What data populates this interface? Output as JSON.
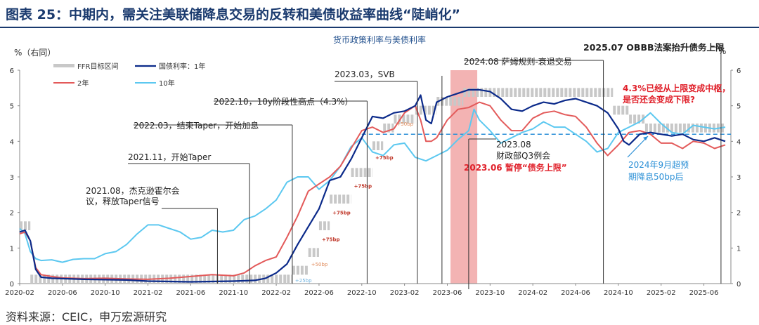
{
  "header": {
    "title": "图表 25：中期内，需关注美联储降息交易的反转和美债收益率曲线“陡峭化”"
  },
  "footer": {
    "source": "资料来源：CEIC，申万宏源研究"
  },
  "chart_data": {
    "type": "line",
    "title": "货币政策利率与美债利率",
    "unit_left": "%（右同）",
    "unit_right": "%",
    "ylim": [
      0,
      6
    ],
    "yticks": [
      "0",
      "1",
      "2",
      "3",
      "4",
      "5",
      "6"
    ],
    "x_tick_labels": [
      "2020-02",
      "2020-06",
      "2020-10",
      "2021-02",
      "2021-06",
      "2021-10",
      "2022-02",
      "2022-06",
      "2022-10",
      "2023-02",
      "2023-06",
      "2023-10",
      "2024-02",
      "2024-06",
      "2024-10",
      "2025-02",
      "2025-06"
    ],
    "x_month_range": [
      0,
      66
    ],
    "legend": {
      "ffr": "FFR目标区间",
      "y1": "国债利率：1年",
      "y2": "2年",
      "y10": "10年"
    },
    "colors": {
      "ffr": "#c8c8c8",
      "y1": "#0b2a8a",
      "y2": "#e35a5a",
      "y10": "#5cc8f0",
      "highlight": "#ef9a9a",
      "dashed": "#2b8fd8",
      "red_text": "#e0202a"
    },
    "ffr_range": [
      {
        "m": 0,
        "lo": 1.5,
        "hi": 1.75
      },
      {
        "m": 1,
        "lo": 0,
        "hi": 0.25
      },
      {
        "m": 25,
        "lo": 0,
        "hi": 0.25
      },
      {
        "m": 25.5,
        "lo": 0.25,
        "hi": 0.5
      },
      {
        "m": 27,
        "lo": 0.75,
        "hi": 1.0
      },
      {
        "m": 28,
        "lo": 1.5,
        "hi": 1.75
      },
      {
        "m": 29,
        "lo": 2.25,
        "hi": 2.5
      },
      {
        "m": 31,
        "lo": 3.0,
        "hi": 3.25
      },
      {
        "m": 33,
        "lo": 3.75,
        "hi": 4.0
      },
      {
        "m": 34,
        "lo": 4.25,
        "hi": 4.5
      },
      {
        "m": 35,
        "lo": 4.5,
        "hi": 4.75
      },
      {
        "m": 37,
        "lo": 4.75,
        "hi": 5.0
      },
      {
        "m": 39,
        "lo": 5.0,
        "hi": 5.25
      },
      {
        "m": 41.5,
        "lo": 5.25,
        "hi": 5.5
      },
      {
        "m": 55.5,
        "lo": 4.75,
        "hi": 5.0
      },
      {
        "m": 57,
        "lo": 4.5,
        "hi": 4.75
      },
      {
        "m": 58.5,
        "lo": 4.25,
        "hi": 4.5
      },
      {
        "m": 66,
        "lo": 4.25,
        "hi": 4.5
      }
    ],
    "series": [
      {
        "name": "国债利率：1年",
        "key": "y1",
        "points": [
          [
            0,
            1.45
          ],
          [
            0.5,
            1.5
          ],
          [
            1,
            1.2
          ],
          [
            1.5,
            0.4
          ],
          [
            2,
            0.18
          ],
          [
            3,
            0.15
          ],
          [
            4,
            0.14
          ],
          [
            6,
            0.12
          ],
          [
            8,
            0.11
          ],
          [
            10,
            0.1
          ],
          [
            12,
            0.07
          ],
          [
            14,
            0.06
          ],
          [
            16,
            0.05
          ],
          [
            18,
            0.06
          ],
          [
            20,
            0.07
          ],
          [
            22,
            0.09
          ],
          [
            23,
            0.15
          ],
          [
            24,
            0.3
          ],
          [
            25,
            0.55
          ],
          [
            26,
            1.1
          ],
          [
            27,
            1.6
          ],
          [
            28,
            2.1
          ],
          [
            29,
            2.9
          ],
          [
            30,
            3.0
          ],
          [
            31,
            3.5
          ],
          [
            32,
            4.1
          ],
          [
            33,
            4.7
          ],
          [
            34,
            4.65
          ],
          [
            35,
            4.8
          ],
          [
            36,
            4.85
          ],
          [
            37,
            5.0
          ],
          [
            37.5,
            5.3
          ],
          [
            38,
            4.6
          ],
          [
            38.5,
            4.5
          ],
          [
            39,
            5.1
          ],
          [
            40,
            5.25
          ],
          [
            41,
            5.35
          ],
          [
            42,
            5.45
          ],
          [
            43,
            5.45
          ],
          [
            44,
            5.4
          ],
          [
            45,
            5.2
          ],
          [
            46,
            4.9
          ],
          [
            47,
            4.85
          ],
          [
            48,
            5.0
          ],
          [
            49,
            5.1
          ],
          [
            50,
            5.05
          ],
          [
            51,
            5.15
          ],
          [
            52,
            5.2
          ],
          [
            53,
            5.1
          ],
          [
            54,
            5.0
          ],
          [
            55,
            4.8
          ],
          [
            56,
            4.35
          ],
          [
            56.5,
            4.0
          ],
          [
            57,
            3.9
          ],
          [
            58,
            4.2
          ],
          [
            59,
            4.25
          ],
          [
            60,
            4.2
          ],
          [
            61,
            4.15
          ],
          [
            62,
            4.2
          ],
          [
            63,
            4.05
          ],
          [
            64,
            4.0
          ],
          [
            65,
            4.1
          ],
          [
            66,
            4.0
          ]
        ]
      },
      {
        "name": "2年",
        "key": "y2",
        "points": [
          [
            0,
            1.4
          ],
          [
            0.5,
            1.45
          ],
          [
            1,
            1.2
          ],
          [
            1.5,
            0.45
          ],
          [
            2,
            0.25
          ],
          [
            3,
            0.2
          ],
          [
            4,
            0.16
          ],
          [
            6,
            0.14
          ],
          [
            8,
            0.15
          ],
          [
            10,
            0.13
          ],
          [
            12,
            0.12
          ],
          [
            14,
            0.15
          ],
          [
            16,
            0.2
          ],
          [
            18,
            0.25
          ],
          [
            20,
            0.22
          ],
          [
            21,
            0.3
          ],
          [
            22,
            0.5
          ],
          [
            23,
            0.65
          ],
          [
            24,
            0.75
          ],
          [
            25,
            1.3
          ],
          [
            26,
            1.9
          ],
          [
            27,
            2.6
          ],
          [
            28,
            2.8
          ],
          [
            29,
            3.0
          ],
          [
            30,
            3.3
          ],
          [
            31,
            3.8
          ],
          [
            32,
            4.3
          ],
          [
            33,
            4.4
          ],
          [
            34,
            4.25
          ],
          [
            35,
            4.35
          ],
          [
            36,
            4.8
          ],
          [
            37,
            5.0
          ],
          [
            37.5,
            4.6
          ],
          [
            38,
            4.0
          ],
          [
            38.5,
            4.0
          ],
          [
            39,
            4.1
          ],
          [
            40,
            4.6
          ],
          [
            41,
            4.9
          ],
          [
            42,
            4.95
          ],
          [
            43,
            5.1
          ],
          [
            44,
            5.0
          ],
          [
            45,
            4.6
          ],
          [
            46,
            4.3
          ],
          [
            47,
            4.3
          ],
          [
            48,
            4.65
          ],
          [
            49,
            4.8
          ],
          [
            50,
            4.85
          ],
          [
            51,
            4.75
          ],
          [
            52,
            4.7
          ],
          [
            53,
            4.4
          ],
          [
            54,
            3.95
          ],
          [
            55,
            3.6
          ],
          [
            56,
            3.9
          ],
          [
            57,
            4.25
          ],
          [
            58,
            4.3
          ],
          [
            59,
            4.2
          ],
          [
            60,
            3.95
          ],
          [
            61,
            3.95
          ],
          [
            62,
            3.8
          ],
          [
            63,
            4.0
          ],
          [
            64,
            3.95
          ],
          [
            65,
            3.8
          ],
          [
            66,
            3.9
          ]
        ]
      },
      {
        "name": "10年",
        "key": "y10",
        "points": [
          [
            0,
            1.55
          ],
          [
            0.5,
            1.4
          ],
          [
            1,
            0.9
          ],
          [
            1.5,
            0.7
          ],
          [
            2,
            0.65
          ],
          [
            3,
            0.67
          ],
          [
            4,
            0.6
          ],
          [
            5,
            0.68
          ],
          [
            6,
            0.7
          ],
          [
            7,
            0.7
          ],
          [
            8,
            0.84
          ],
          [
            9,
            0.9
          ],
          [
            10,
            1.1
          ],
          [
            11,
            1.4
          ],
          [
            12,
            1.65
          ],
          [
            13,
            1.65
          ],
          [
            14,
            1.55
          ],
          [
            15,
            1.45
          ],
          [
            16,
            1.25
          ],
          [
            17,
            1.3
          ],
          [
            18,
            1.5
          ],
          [
            19,
            1.45
          ],
          [
            20,
            1.5
          ],
          [
            21,
            1.8
          ],
          [
            22,
            1.9
          ],
          [
            23,
            2.1
          ],
          [
            24,
            2.35
          ],
          [
            25,
            2.85
          ],
          [
            26,
            3.0
          ],
          [
            27,
            3.0
          ],
          [
            28,
            2.65
          ],
          [
            29,
            2.9
          ],
          [
            30,
            3.3
          ],
          [
            31,
            3.85
          ],
          [
            32,
            4.1
          ],
          [
            33,
            3.7
          ],
          [
            34,
            3.6
          ],
          [
            35,
            3.9
          ],
          [
            36,
            3.95
          ],
          [
            37,
            3.55
          ],
          [
            38,
            3.45
          ],
          [
            39,
            3.6
          ],
          [
            40,
            3.75
          ],
          [
            41,
            4.05
          ],
          [
            42,
            4.3
          ],
          [
            42.5,
            4.9
          ],
          [
            43,
            4.6
          ],
          [
            44,
            4.3
          ],
          [
            45,
            3.95
          ],
          [
            46,
            4.1
          ],
          [
            47,
            4.25
          ],
          [
            48,
            4.35
          ],
          [
            49,
            4.55
          ],
          [
            50,
            4.4
          ],
          [
            51,
            4.4
          ],
          [
            52,
            4.2
          ],
          [
            53,
            4.0
          ],
          [
            54,
            3.7
          ],
          [
            55,
            3.8
          ],
          [
            56,
            4.25
          ],
          [
            57,
            4.4
          ],
          [
            58,
            4.55
          ],
          [
            59,
            4.8
          ],
          [
            60,
            4.5
          ],
          [
            61,
            4.25
          ],
          [
            62,
            4.2
          ],
          [
            63,
            4.45
          ],
          [
            64,
            4.4
          ],
          [
            65,
            4.35
          ],
          [
            66,
            4.4
          ]
        ]
      }
    ],
    "reference_line": {
      "value": 4.2,
      "style": "dashed"
    },
    "highlight_band": {
      "from": 40.3,
      "to": 42.8
    },
    "hike_labels": [
      {
        "m": 25.5,
        "y": 0.0,
        "label": "+25bp",
        "style": "blue"
      },
      {
        "m": 27,
        "y": 0.45,
        "label": "+50bp",
        "style": "light"
      },
      {
        "m": 28,
        "y": 1.15,
        "label": "+75bp",
        "style": "bold"
      },
      {
        "m": 29,
        "y": 1.9,
        "label": "+75bp",
        "style": "bold"
      },
      {
        "m": 31,
        "y": 2.65,
        "label": "+75bp",
        "style": "bold"
      },
      {
        "m": 33,
        "y": 3.45,
        "label": "+75bp",
        "style": "bold"
      },
      {
        "m": 35,
        "y": 4.4,
        "label": "+50bp",
        "style": "light"
      }
    ],
    "annotations": [
      {
        "id": "a2021-08",
        "lines": [
          "2021.08，杰克逊霍尔会",
          "议，释放Taper信号"
        ],
        "vline_m": 18.5,
        "style": "normal"
      },
      {
        "id": "a2021-11",
        "lines": [
          "2021.11，开始Taper"
        ],
        "vline_m": 21.5,
        "style": "normal"
      },
      {
        "id": "a2022-03",
        "lines": [
          "2022.03，结束Taper，开始加息"
        ],
        "vline_m": 25.5,
        "style": "normal"
      },
      {
        "id": "a2022-10",
        "lines": [
          "2022.10，10y阶段性高点（4.3%）"
        ],
        "vline_m": 32.5,
        "style": "normal"
      },
      {
        "id": "a2023-03",
        "lines": [
          "2023.03，SVB"
        ],
        "vline_m": 37.2,
        "style": "normal"
      },
      {
        "id": "a2023-06",
        "lines": [
          "2023.06 暂停“债务上限”"
        ],
        "vline_m": 39.5,
        "style": "red"
      },
      {
        "id": "a2023-08",
        "lines": [
          "2023.08",
          "财政部Q3例会"
        ],
        "vline_m": 42.0,
        "style": "normal"
      },
      {
        "id": "a2024-08",
        "lines": [
          "2024.08 萨姆规则-衰退交易"
        ],
        "vline_m": 54.6,
        "style": "normal"
      },
      {
        "id": "a2025-07",
        "lines": [
          "2025.07 OBBB法案抬升债务上限"
        ],
        "vline_m": 65.6,
        "style": "big"
      },
      {
        "id": "a-red-q",
        "lines": [
          "4.3%已经从上限变成中枢，",
          "是否还会变成下限?"
        ],
        "style": "redq"
      },
      {
        "id": "a-blue",
        "lines": [
          "2024年9月超预",
          "期降息50bp后"
        ],
        "style": "blue"
      }
    ]
  }
}
